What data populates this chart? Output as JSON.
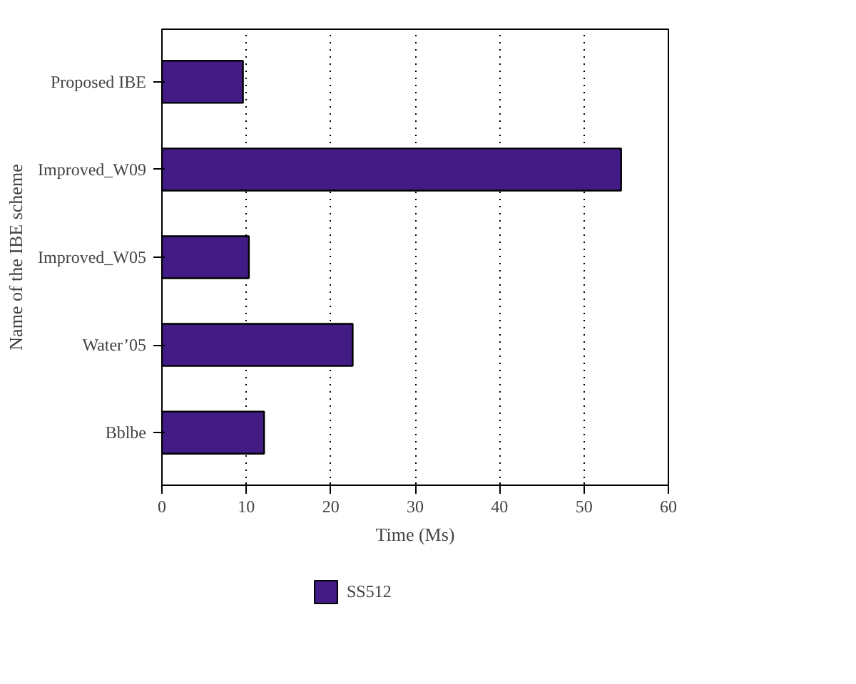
{
  "chart_data": {
    "type": "bar",
    "orientation": "horizontal",
    "xlabel": "Time (Ms)",
    "ylabel": "Name of the IBE scheme",
    "categories": [
      "Proposed IBE",
      "Improved_W09",
      "Improved_W05",
      "Water’05",
      "Bblbe"
    ],
    "series": [
      {
        "name": "SS512",
        "color": "#421c84",
        "values": [
          9.6,
          54.4,
          10.3,
          22.6,
          12.1
        ]
      }
    ],
    "xlim": [
      0,
      60
    ],
    "xticks": [
      0,
      10,
      20,
      30,
      40,
      50,
      60
    ],
    "grid": "x",
    "legend": "bottom left"
  }
}
